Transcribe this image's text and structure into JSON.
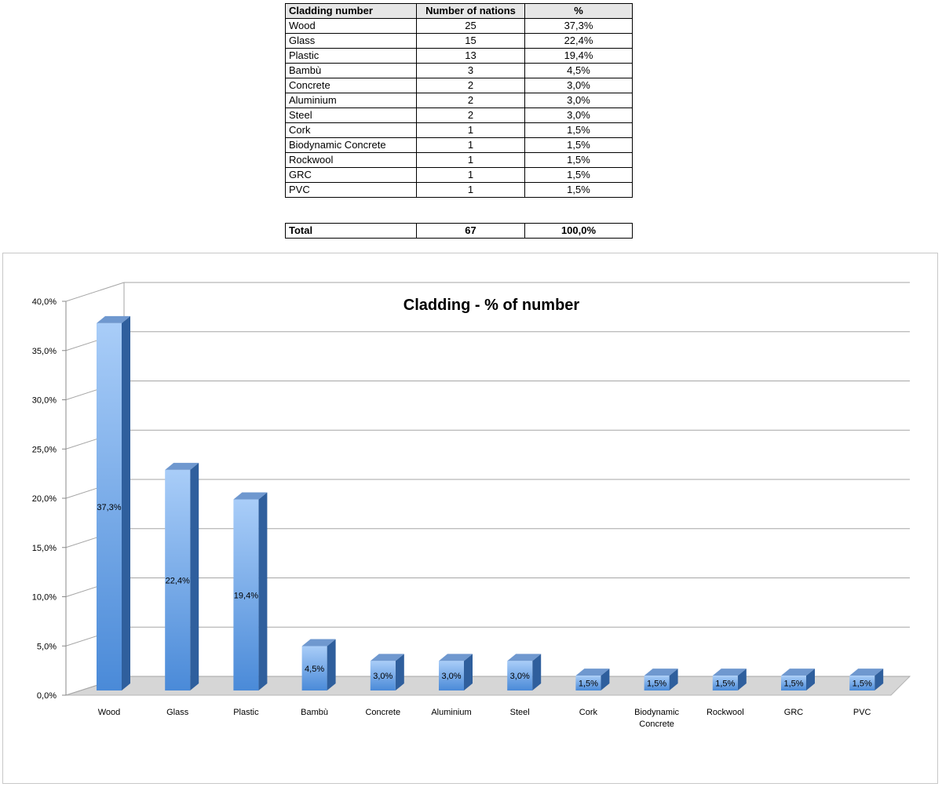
{
  "table": {
    "headers": [
      "Cladding number",
      "Number of nations",
      "%"
    ],
    "rows": [
      [
        "Wood",
        "25",
        "37,3%"
      ],
      [
        "Glass",
        "15",
        "22,4%"
      ],
      [
        "Plastic",
        "13",
        "19,4%"
      ],
      [
        "Bambù",
        "3",
        "4,5%"
      ],
      [
        "Concrete",
        "2",
        "3,0%"
      ],
      [
        "Aluminium",
        "2",
        "3,0%"
      ],
      [
        "Steel",
        "2",
        "3,0%"
      ],
      [
        "Cork",
        "1",
        "1,5%"
      ],
      [
        "Biodynamic  Concrete",
        "1",
        "1,5%"
      ],
      [
        "Rockwool",
        "1",
        "1,5%"
      ],
      [
        "GRC",
        "1",
        "1,5%"
      ],
      [
        "PVC",
        "1",
        "1,5%"
      ]
    ],
    "total": [
      "Total",
      "67",
      "100,0%"
    ]
  },
  "chart_data": {
    "type": "bar",
    "title": "Cladding - % of number",
    "categories": [
      "Wood",
      "Glass",
      "Plastic",
      "Bambù",
      "Concrete",
      "Aluminium",
      "Steel",
      "Cork",
      "Biodynamic Concrete",
      "Rockwool",
      "GRC",
      "PVC"
    ],
    "category_label_lines": [
      [
        "Wood"
      ],
      [
        "Glass"
      ],
      [
        "Plastic"
      ],
      [
        "Bambù"
      ],
      [
        "Concrete"
      ],
      [
        "Aluminium"
      ],
      [
        "Steel"
      ],
      [
        "Cork"
      ],
      [
        "Biodynamic",
        "Concrete"
      ],
      [
        "Rockwool"
      ],
      [
        "GRC"
      ],
      [
        "PVC"
      ]
    ],
    "values": [
      37.3,
      22.4,
      19.4,
      4.5,
      3.0,
      3.0,
      3.0,
      1.5,
      1.5,
      1.5,
      1.5,
      1.5
    ],
    "data_labels": [
      "37,3%",
      "22,4%",
      "19,4%",
      "4,5%",
      "3,0%",
      "3,0%",
      "3,0%",
      "1,5%",
      "1,5%",
      "1,5%",
      "1,5%",
      "1,5%"
    ],
    "ylim": [
      0,
      40
    ],
    "y_ticks": [
      0,
      5,
      10,
      15,
      20,
      25,
      30,
      35,
      40
    ],
    "y_tick_labels": [
      "0,0%",
      "5,0%",
      "10,0%",
      "15,0%",
      "20,0%",
      "25,0%",
      "30,0%",
      "35,0%",
      "40,0%"
    ],
    "xlabel": "",
    "ylabel": "",
    "grid": true,
    "legend": "none",
    "style": "3d-column",
    "colors": {
      "bar_front_top": "#a9cdf8",
      "bar_front_bottom": "#4a8ad8",
      "bar_side": "#2f5f9d",
      "bar_top": "#6f98cf",
      "grid": "#a6a6a6",
      "floor": "#d6d6d6"
    }
  }
}
